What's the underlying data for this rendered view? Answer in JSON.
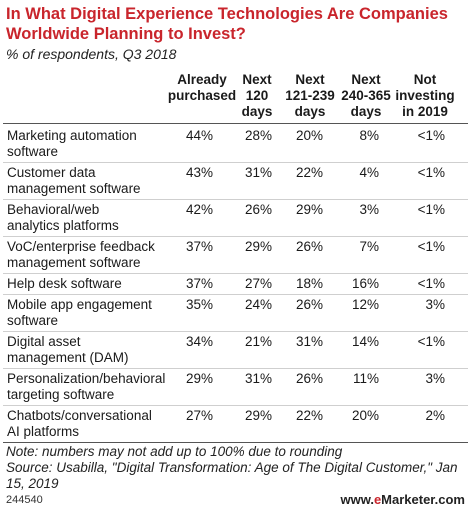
{
  "title": "In What Digital Experience Technologies Are Companies Worldwide Planning to Invest?",
  "subtitle": "% of respondents, Q3 2018",
  "columns": [
    "Already\npurchased",
    "Next\n120\ndays",
    "Next\n121-239\ndays",
    "Next\n240-365\ndays",
    "Not\ninvesting\nin 2019"
  ],
  "rows": [
    {
      "label": "Marketing automation\nsoftware",
      "values": [
        "44%",
        "28%",
        "20%",
        "8%",
        "<1%"
      ]
    },
    {
      "label": "Customer data\nmanagement software",
      "values": [
        "43%",
        "31%",
        "22%",
        "4%",
        "<1%"
      ]
    },
    {
      "label": "Behavioral/web\nanalytics platforms",
      "values": [
        "42%",
        "26%",
        "29%",
        "3%",
        "<1%"
      ]
    },
    {
      "label": "VoC/enterprise feedback\nmanagement software",
      "values": [
        "37%",
        "29%",
        "26%",
        "7%",
        "<1%"
      ]
    },
    {
      "label": "Help desk software",
      "values": [
        "37%",
        "27%",
        "18%",
        "16%",
        "<1%"
      ]
    },
    {
      "label": "Mobile app engagement\nsoftware",
      "values": [
        "35%",
        "24%",
        "26%",
        "12%",
        "3%"
      ]
    },
    {
      "label": "Digital asset\nmanagement (DAM)",
      "values": [
        "34%",
        "21%",
        "31%",
        "14%",
        "<1%"
      ]
    },
    {
      "label": "Personalization/behavioral\ntargeting software",
      "values": [
        "29%",
        "31%",
        "26%",
        "11%",
        "3%"
      ]
    },
    {
      "label": "Chatbots/conversational\nAI platforms",
      "values": [
        "27%",
        "29%",
        "22%",
        "20%",
        "2%"
      ]
    }
  ],
  "note": "Note: numbers may not add up to 100% due to rounding",
  "source": "Source: Usabilla, \"Digital Transformation: Age of The Digital Customer,\" Jan 15, 2019",
  "footer_id": "244540",
  "brand_prefix": "www.",
  "brand_e": "e",
  "brand_rest": "Marketer.com",
  "chart_data": {
    "type": "table",
    "title": "In What Digital Experience Technologies Are Companies Worldwide Planning to Invest?",
    "subtitle": "% of respondents, Q3 2018",
    "columns": [
      "Already purchased",
      "Next 120 days",
      "Next 121-239 days",
      "Next 240-365 days",
      "Not investing in 2019"
    ],
    "categories": [
      "Marketing automation software",
      "Customer data management software",
      "Behavioral/web analytics platforms",
      "VoC/enterprise feedback management software",
      "Help desk software",
      "Mobile app engagement software",
      "Digital asset management (DAM)",
      "Personalization/behavioral targeting software",
      "Chatbots/conversational AI platforms"
    ],
    "series": [
      {
        "name": "Already purchased",
        "values": [
          "44%",
          "43%",
          "42%",
          "37%",
          "37%",
          "35%",
          "34%",
          "29%",
          "27%"
        ]
      },
      {
        "name": "Next 120 days",
        "values": [
          "28%",
          "31%",
          "26%",
          "29%",
          "27%",
          "24%",
          "21%",
          "31%",
          "29%"
        ]
      },
      {
        "name": "Next 121-239 days",
        "values": [
          "20%",
          "22%",
          "29%",
          "26%",
          "18%",
          "26%",
          "31%",
          "26%",
          "22%"
        ]
      },
      {
        "name": "Next 240-365 days",
        "values": [
          "8%",
          "4%",
          "3%",
          "7%",
          "16%",
          "12%",
          "14%",
          "11%",
          "20%"
        ]
      },
      {
        "name": "Not investing in 2019",
        "values": [
          "<1%",
          "<1%",
          "<1%",
          "<1%",
          "<1%",
          "3%",
          "<1%",
          "3%",
          "2%"
        ]
      }
    ]
  }
}
